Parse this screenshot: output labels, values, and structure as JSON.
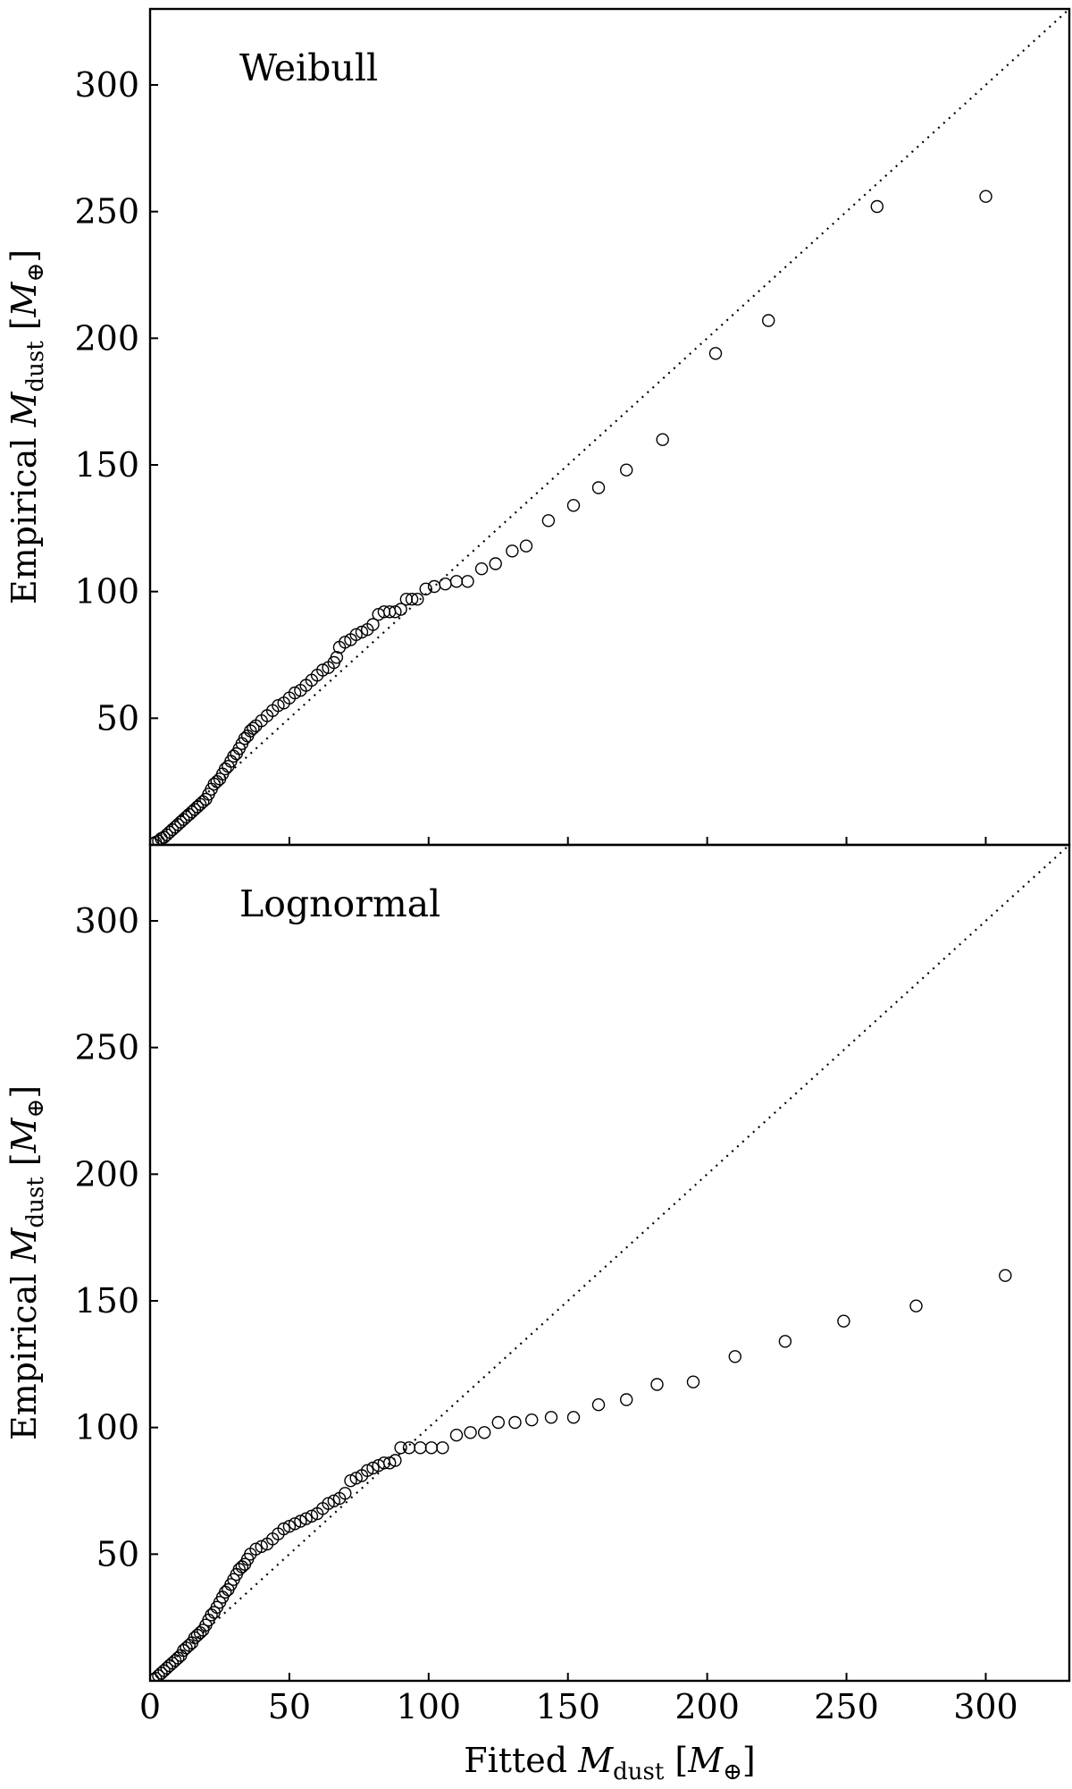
{
  "chart_data": [
    {
      "type": "scatter",
      "title": "Weibull",
      "xlabel": "",
      "ylabel": "Empirical M_dust [M_⊕]",
      "ylabel_parts": {
        "prefix": "Empirical ",
        "symbol": "M",
        "subscript": "dust",
        "unit_open": " [",
        "unit_symbol": "M",
        "unit_subscript": "⊕",
        "unit_close": "]"
      },
      "xlim": [
        0,
        330
      ],
      "ylim": [
        0,
        330
      ],
      "xticks": [
        50,
        100,
        150,
        200,
        250,
        300
      ],
      "xtick_labels": [],
      "yticks": [
        50,
        100,
        150,
        200,
        250,
        300
      ],
      "ytick_labels": [
        "50",
        "100",
        "150",
        "200",
        "250",
        "300"
      ],
      "reference_line": "y = x (dotted)",
      "points": [
        [
          1,
          0.5
        ],
        [
          2,
          1
        ],
        [
          3,
          1.5
        ],
        [
          4,
          2.5
        ],
        [
          5,
          3
        ],
        [
          6,
          4
        ],
        [
          7,
          5
        ],
        [
          8,
          6
        ],
        [
          9,
          7
        ],
        [
          10,
          8
        ],
        [
          11,
          9
        ],
        [
          12,
          10
        ],
        [
          13,
          11
        ],
        [
          14,
          12
        ],
        [
          15,
          13
        ],
        [
          16,
          14
        ],
        [
          17,
          15
        ],
        [
          18,
          16
        ],
        [
          19,
          17
        ],
        [
          20,
          18
        ],
        [
          21,
          20
        ],
        [
          22,
          22
        ],
        [
          23,
          24
        ],
        [
          24,
          25
        ],
        [
          25,
          26
        ],
        [
          26,
          28
        ],
        [
          27,
          30
        ],
        [
          28,
          31
        ],
        [
          29,
          33
        ],
        [
          30,
          35
        ],
        [
          31,
          36
        ],
        [
          32,
          38
        ],
        [
          33,
          40
        ],
        [
          34,
          42
        ],
        [
          35,
          43
        ],
        [
          36,
          45
        ],
        [
          37,
          46
        ],
        [
          38,
          47
        ],
        [
          40,
          49
        ],
        [
          42,
          51
        ],
        [
          44,
          53
        ],
        [
          46,
          55
        ],
        [
          48,
          56
        ],
        [
          50,
          58
        ],
        [
          52,
          60
        ],
        [
          54,
          61
        ],
        [
          56,
          63
        ],
        [
          58,
          65
        ],
        [
          60,
          67
        ],
        [
          62,
          69
        ],
        [
          64,
          70
        ],
        [
          66,
          72
        ],
        [
          67,
          74
        ],
        [
          68,
          78
        ],
        [
          70,
          80
        ],
        [
          72,
          81
        ],
        [
          74,
          83
        ],
        [
          76,
          84
        ],
        [
          78,
          85
        ],
        [
          80,
          87
        ],
        [
          82,
          91
        ],
        [
          84,
          92
        ],
        [
          86,
          92
        ],
        [
          88,
          92
        ],
        [
          90,
          93
        ],
        [
          92,
          97
        ],
        [
          94,
          97
        ],
        [
          96,
          97
        ],
        [
          99,
          101
        ],
        [
          102,
          102
        ],
        [
          106,
          103
        ],
        [
          110,
          104
        ],
        [
          114,
          104
        ],
        [
          119,
          109
        ],
        [
          124,
          111
        ],
        [
          130,
          116
        ],
        [
          135,
          118
        ],
        [
          143,
          128
        ],
        [
          152,
          134
        ],
        [
          161,
          141
        ],
        [
          171,
          148
        ],
        [
          184,
          160
        ],
        [
          203,
          194
        ],
        [
          222,
          207
        ],
        [
          261,
          252
        ],
        [
          300,
          256
        ]
      ]
    },
    {
      "type": "scatter",
      "title": "Lognormal",
      "xlabel": "Fitted M_dust [M_⊕]",
      "xlabel_parts": {
        "prefix": "Fitted ",
        "symbol": "M",
        "subscript": "dust",
        "unit_open": " [",
        "unit_symbol": "M",
        "unit_subscript": "⊕",
        "unit_close": "]"
      },
      "ylabel": "Empirical M_dust [M_⊕]",
      "ylabel_parts": {
        "prefix": "Empirical ",
        "symbol": "M",
        "subscript": "dust",
        "unit_open": " [",
        "unit_symbol": "M",
        "unit_subscript": "⊕",
        "unit_close": "]"
      },
      "xlim": [
        0,
        330
      ],
      "ylim": [
        0,
        330
      ],
      "xticks": [
        0,
        50,
        100,
        150,
        200,
        250,
        300
      ],
      "xtick_labels": [
        "0",
        "50",
        "100",
        "150",
        "200",
        "250",
        "300"
      ],
      "yticks": [
        50,
        100,
        150,
        200,
        250,
        300
      ],
      "ytick_labels": [
        "50",
        "100",
        "150",
        "200",
        "250",
        "300"
      ],
      "reference_line": "y = x (dotted)",
      "points": [
        [
          1,
          0.5
        ],
        [
          2,
          1
        ],
        [
          3,
          2
        ],
        [
          4,
          3
        ],
        [
          5,
          4
        ],
        [
          6,
          5
        ],
        [
          7,
          6
        ],
        [
          8,
          7
        ],
        [
          9,
          8
        ],
        [
          10,
          9
        ],
        [
          11,
          10
        ],
        [
          12,
          12
        ],
        [
          13,
          13
        ],
        [
          14,
          14
        ],
        [
          15,
          15
        ],
        [
          16,
          17
        ],
        [
          17,
          18
        ],
        [
          18,
          19
        ],
        [
          19,
          20
        ],
        [
          20,
          22
        ],
        [
          21,
          24
        ],
        [
          22,
          26
        ],
        [
          23,
          27
        ],
        [
          24,
          29
        ],
        [
          25,
          31
        ],
        [
          26,
          33
        ],
        [
          27,
          35
        ],
        [
          28,
          36
        ],
        [
          29,
          38
        ],
        [
          30,
          40
        ],
        [
          31,
          42
        ],
        [
          32,
          44
        ],
        [
          33,
          45
        ],
        [
          34,
          46
        ],
        [
          35,
          48
        ],
        [
          36,
          50
        ],
        [
          38,
          52
        ],
        [
          40,
          53
        ],
        [
          42,
          54
        ],
        [
          44,
          56
        ],
        [
          46,
          58
        ],
        [
          48,
          60
        ],
        [
          50,
          61
        ],
        [
          52,
          62
        ],
        [
          54,
          63
        ],
        [
          56,
          64
        ],
        [
          58,
          65
        ],
        [
          60,
          66
        ],
        [
          62,
          68
        ],
        [
          64,
          70
        ],
        [
          66,
          71
        ],
        [
          68,
          72
        ],
        [
          70,
          74
        ],
        [
          72,
          79
        ],
        [
          74,
          80
        ],
        [
          76,
          81
        ],
        [
          78,
          83
        ],
        [
          80,
          84
        ],
        [
          82,
          85
        ],
        [
          84,
          86
        ],
        [
          86,
          86
        ],
        [
          88,
          87
        ],
        [
          90,
          92
        ],
        [
          93,
          92
        ],
        [
          97,
          92
        ],
        [
          101,
          92
        ],
        [
          105,
          92
        ],
        [
          110,
          97
        ],
        [
          115,
          98
        ],
        [
          120,
          98
        ],
        [
          125,
          102
        ],
        [
          131,
          102
        ],
        [
          137,
          103
        ],
        [
          144,
          104
        ],
        [
          152,
          104
        ],
        [
          161,
          109
        ],
        [
          171,
          111
        ],
        [
          182,
          117
        ],
        [
          195,
          118
        ],
        [
          210,
          128
        ],
        [
          228,
          134
        ],
        [
          249,
          142
        ],
        [
          275,
          148
        ],
        [
          307,
          160
        ]
      ]
    }
  ]
}
